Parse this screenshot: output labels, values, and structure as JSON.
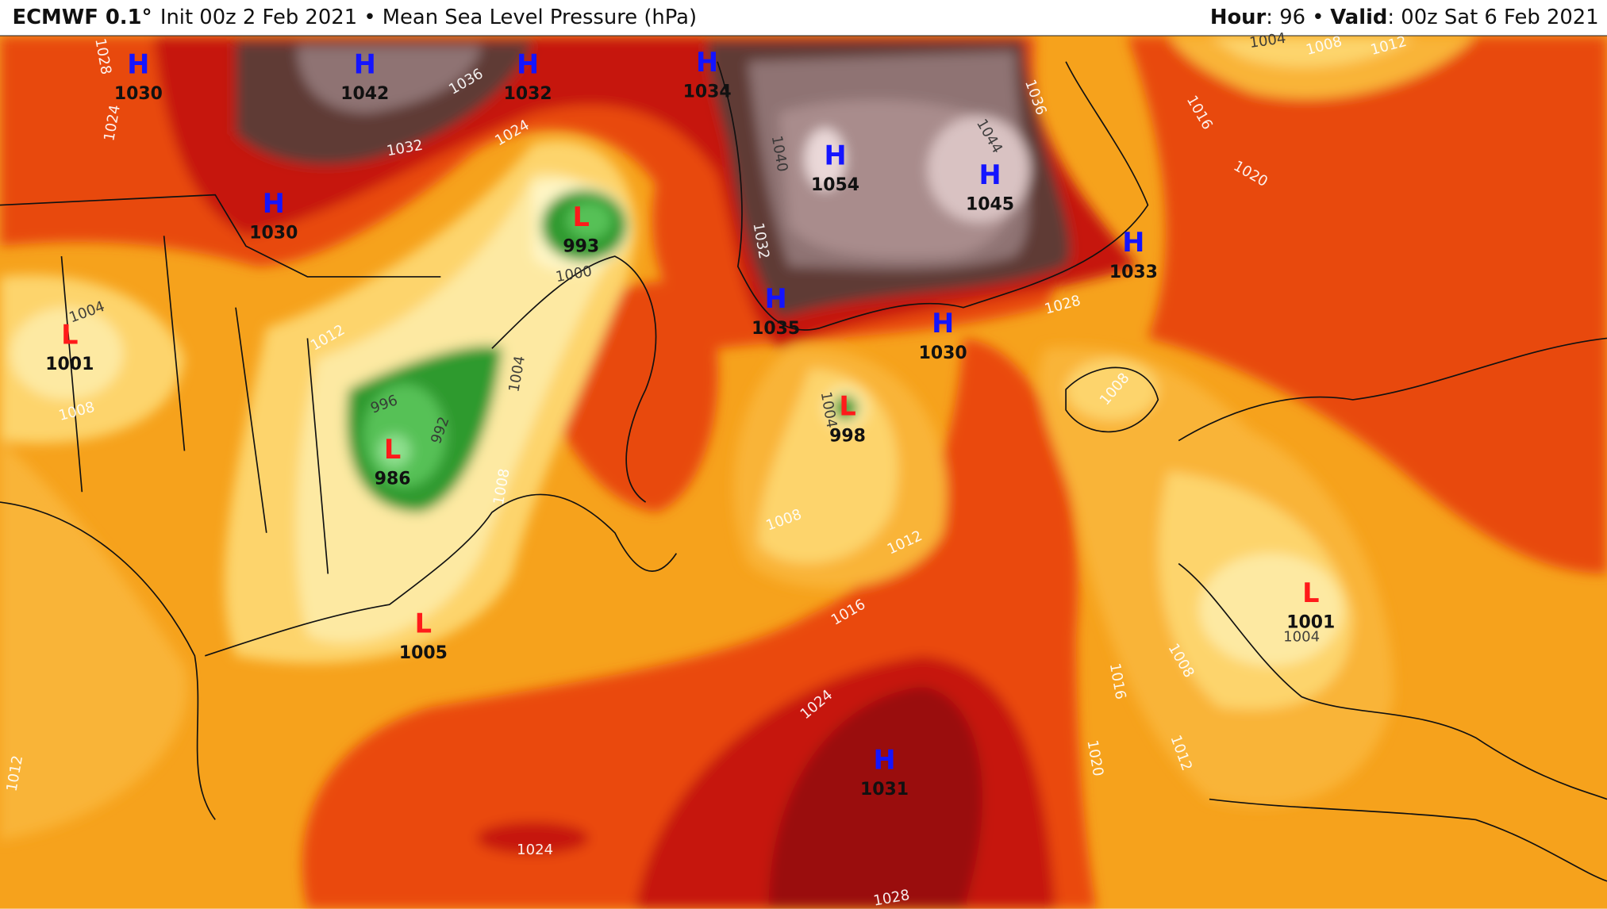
{
  "header": {
    "model": "ECMWF 0.1°",
    "info": "Init 00z 2 Feb 2021 • Mean Sea Level Pressure (hPa)",
    "hour_label": "Hour",
    "hour": ": 96 •",
    "valid_label": "Valid",
    "valid": ": 00z Sat 6 Feb 2021"
  },
  "centers": [
    {
      "type": "H",
      "value": 1030
    },
    {
      "type": "H",
      "value": 1042
    },
    {
      "type": "H",
      "value": 1032
    },
    {
      "type": "H",
      "value": 1034
    },
    {
      "type": "H",
      "value": 1054
    },
    {
      "type": "H",
      "value": 1045
    },
    {
      "type": "H",
      "value": 1030
    },
    {
      "type": "H",
      "value": 1033
    },
    {
      "type": "H",
      "value": 1035
    },
    {
      "type": "H",
      "value": 1030
    },
    {
      "type": "L",
      "value": 993
    },
    {
      "type": "L",
      "value": 1001
    },
    {
      "type": "L",
      "value": 986
    },
    {
      "type": "L",
      "value": 998
    },
    {
      "type": "L",
      "value": 1005
    },
    {
      "type": "L",
      "value": 1001
    },
    {
      "type": "H",
      "value": 1031
    }
  ],
  "contour_labels": [
    1004,
    1008,
    1012,
    1016,
    1020,
    1036,
    1044,
    1040,
    1032,
    1028,
    1012,
    1004,
    1008,
    996,
    992,
    1004,
    1008,
    1000,
    1004,
    1008,
    1012,
    1016,
    1024,
    1028,
    1024,
    1020,
    1016,
    1012,
    1008,
    1004,
    1012,
    1008,
    1032,
    1036,
    1024,
    1028,
    1024
  ]
}
